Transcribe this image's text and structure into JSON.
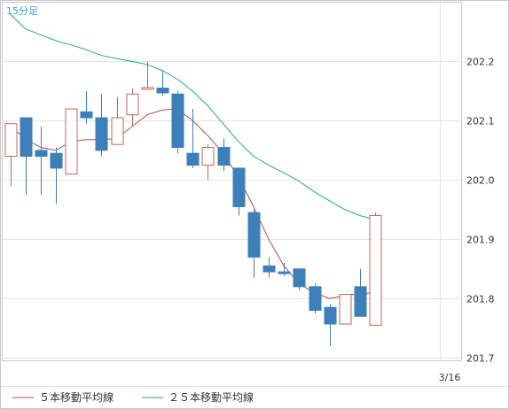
{
  "timeframe_label": "15分足",
  "chart_data": {
    "type": "candlestick",
    "title": "",
    "xlabel": "",
    "ylabel": "",
    "ylim": [
      201.695,
      202.3
    ],
    "y_ticks": [
      201.7,
      201.8,
      201.9,
      202.0,
      202.1,
      202.2
    ],
    "y_tick_labels": [
      "201.7",
      "201.8",
      "201.9",
      "202.0",
      "202.1",
      "202.2"
    ],
    "x_tick_label": "3/16",
    "grid": true,
    "legend_position": "bottom",
    "colors": {
      "up": "#c8645a",
      "down": "#3d7fb8",
      "ma5": "#b84a55",
      "ma25": "#1fa98a",
      "grid": "#e3e3e3",
      "prev_close": "#c8645a"
    },
    "candles": [
      {
        "o": 202.04,
        "h": 202.095,
        "l": 201.99,
        "c": 202.095
      },
      {
        "o": 202.105,
        "h": 202.105,
        "l": 201.975,
        "c": 202.04
      },
      {
        "o": 202.05,
        "h": 202.09,
        "l": 201.975,
        "c": 202.04
      },
      {
        "o": 202.045,
        "h": 202.055,
        "l": 201.96,
        "c": 202.02
      },
      {
        "o": 202.01,
        "h": 202.12,
        "l": 202.01,
        "c": 202.12
      },
      {
        "o": 202.115,
        "h": 202.15,
        "l": 202.095,
        "c": 202.105
      },
      {
        "o": 202.105,
        "h": 202.145,
        "l": 202.04,
        "c": 202.05
      },
      {
        "o": 202.06,
        "h": 202.14,
        "l": 202.06,
        "c": 202.105
      },
      {
        "o": 202.11,
        "h": 202.155,
        "l": 202.09,
        "c": 202.145
      },
      {
        "o": 202.156,
        "h": 202.2,
        "l": 202.154,
        "c": 202.156
      },
      {
        "o": 202.155,
        "h": 202.185,
        "l": 202.142,
        "c": 202.147
      },
      {
        "o": 202.145,
        "h": 202.15,
        "l": 202.045,
        "c": 202.055
      },
      {
        "o": 202.045,
        "h": 202.12,
        "l": 202.02,
        "c": 202.025
      },
      {
        "o": 202.025,
        "h": 202.06,
        "l": 202.0,
        "c": 202.055
      },
      {
        "o": 202.055,
        "h": 202.07,
        "l": 202.015,
        "c": 202.025
      },
      {
        "o": 202.02,
        "h": 202.02,
        "l": 201.94,
        "c": 201.955
      },
      {
        "o": 201.945,
        "h": 201.95,
        "l": 201.835,
        "c": 201.87
      },
      {
        "o": 201.855,
        "h": 201.87,
        "l": 201.835,
        "c": 201.845
      },
      {
        "o": 201.845,
        "h": 201.86,
        "l": 201.838,
        "c": 201.843
      },
      {
        "o": 201.85,
        "h": 201.85,
        "l": 201.815,
        "c": 201.82
      },
      {
        "o": 201.82,
        "h": 201.825,
        "l": 201.775,
        "c": 201.78
      },
      {
        "o": 201.785,
        "h": 201.79,
        "l": 201.72,
        "c": 201.757
      },
      {
        "o": 201.757,
        "h": 201.807,
        "l": 201.757,
        "c": 201.807
      },
      {
        "o": 201.82,
        "h": 201.85,
        "l": 201.77,
        "c": 201.77
      },
      {
        "o": 201.755,
        "h": 201.945,
        "l": 201.755,
        "c": 201.94
      }
    ],
    "series": [
      {
        "name": "５本移動平均線",
        "values": [
          202.09,
          202.07,
          202.055,
          202.05,
          202.065,
          202.068,
          202.068,
          202.07,
          202.09,
          202.11,
          202.118,
          202.12,
          202.1,
          202.075,
          202.045,
          202.005,
          201.955,
          201.9,
          201.855,
          201.825,
          201.81,
          201.8,
          201.805,
          201.808,
          201.81
        ]
      },
      {
        "name": "２５本移動平均線",
        "values": [
          202.28,
          202.255,
          202.245,
          202.235,
          202.228,
          202.22,
          202.21,
          202.205,
          202.2,
          202.195,
          202.185,
          202.17,
          202.15,
          202.125,
          202.095,
          202.065,
          202.04,
          202.025,
          202.012,
          201.998,
          201.98,
          201.965,
          201.95,
          201.94,
          201.933
        ]
      }
    ],
    "prev_close_line": {
      "from_index": 22,
      "to_index": 24,
      "value": 201.807
    }
  }
}
